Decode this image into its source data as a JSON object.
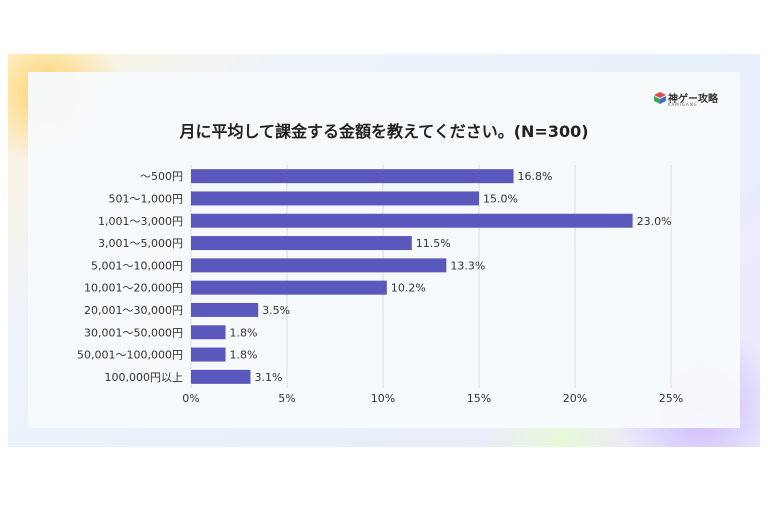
{
  "logo": {
    "text": "神ゲー攻略",
    "subtext": "KAMIGAME"
  },
  "chart_data": {
    "type": "bar",
    "orientation": "horizontal",
    "title": "月に平均して課金する金額を教えてください。(N=300)",
    "categories": [
      "～500円",
      "501～1,000円",
      "1,001～3,000円",
      "3,001～5,000円",
      "5,001～10,000円",
      "10,001～20,000円",
      "20,001～30,000円",
      "30,001～50,000円",
      "50,001～100,000円",
      "100,000円以上"
    ],
    "values": [
      16.8,
      15.0,
      23.0,
      11.5,
      13.3,
      10.2,
      3.5,
      1.8,
      1.8,
      3.1
    ],
    "value_labels": [
      "16.8%",
      "15.0%",
      "23.0%",
      "11.5%",
      "13.3%",
      "10.2%",
      "3.5%",
      "1.8%",
      "1.8%",
      "3.1%"
    ],
    "xlim": [
      0,
      25
    ],
    "xticks": [
      0,
      5,
      10,
      15,
      20,
      25
    ],
    "xtick_labels": [
      "0%",
      "5%",
      "10%",
      "15%",
      "20%",
      "25%"
    ],
    "grid": true,
    "bar_color": "#5b58bd"
  }
}
